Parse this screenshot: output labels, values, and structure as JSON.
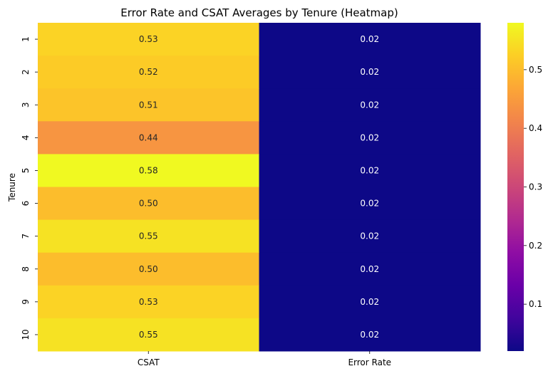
{
  "chart_data": {
    "type": "heatmap",
    "title": "Error Rate and CSAT Averages by Tenure (Heatmap)",
    "xlabel": "",
    "ylabel": "Tenure",
    "columns": [
      "CSAT",
      "Error Rate"
    ],
    "rows": [
      "1",
      "2",
      "3",
      "4",
      "5",
      "6",
      "7",
      "8",
      "9",
      "10"
    ],
    "values": [
      [
        0.53,
        0.02
      ],
      [
        0.52,
        0.02
      ],
      [
        0.51,
        0.02
      ],
      [
        0.44,
        0.02
      ],
      [
        0.58,
        0.02
      ],
      [
        0.5,
        0.02
      ],
      [
        0.55,
        0.02
      ],
      [
        0.5,
        0.02
      ],
      [
        0.53,
        0.02
      ],
      [
        0.55,
        0.02
      ]
    ],
    "colorbar": {
      "colormap": "plasma",
      "range": [
        0.02,
        0.58
      ],
      "ticks": [
        0.1,
        0.2,
        0.3,
        0.4,
        0.5
      ]
    }
  }
}
